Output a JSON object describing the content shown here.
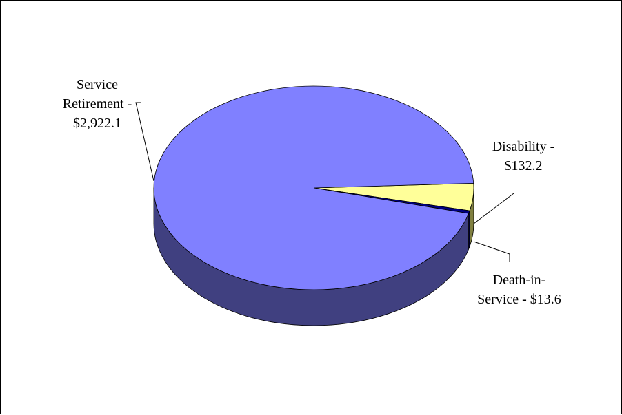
{
  "chart_data": {
    "type": "pie",
    "title": "",
    "slices": [
      {
        "label_lines": [
          "Service",
          "Retirement -",
          "$2,922.1"
        ],
        "value": 2922.1,
        "color": "#8080FF",
        "side_color": "#404080"
      },
      {
        "label_lines": [
          "Disability -",
          "$132.2"
        ],
        "value": 132.2,
        "color": "#FFFF99",
        "side_color": "#808040"
      },
      {
        "label_lines": [
          "Death-in-",
          "Service - $13.6"
        ],
        "value": 13.6,
        "color": "#000080",
        "side_color": "#000040"
      }
    ]
  }
}
